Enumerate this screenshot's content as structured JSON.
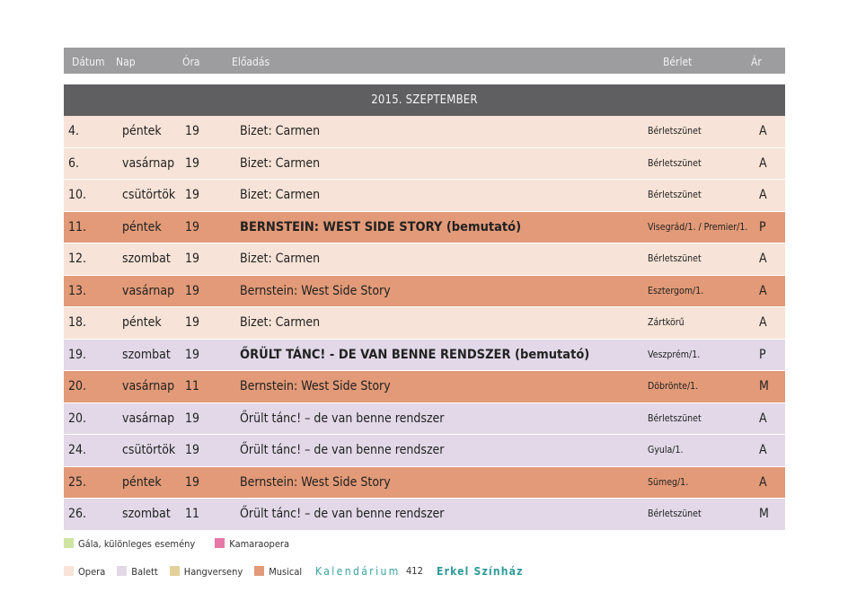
{
  "header": {
    "date": "Dátum",
    "day": "Nap",
    "hour": "Óra",
    "title": "Előadás",
    "season": "Bérlet",
    "price": "Ár"
  },
  "month": "2015. SZEPTEMBER",
  "rows": [
    {
      "date": "4.",
      "day": "péntek",
      "hour": "19",
      "title": "Bizet: Carmen",
      "season": "Bérletszünet",
      "price": "A",
      "type": "opera",
      "bold": false
    },
    {
      "date": "6.",
      "day": "vasárnap",
      "hour": "19",
      "title": "Bizet: Carmen",
      "season": "Bérletszünet",
      "price": "A",
      "type": "opera",
      "bold": false
    },
    {
      "date": "10.",
      "day": "csütörtök",
      "hour": "19",
      "title": "Bizet: Carmen",
      "season": "Bérletszünet",
      "price": "A",
      "type": "opera",
      "bold": false
    },
    {
      "date": "11.",
      "day": "péntek",
      "hour": "19",
      "title": "BERNSTEIN: WEST SIDE STORY (bemutató)",
      "season": "Visegrád/1. / Premier/1.",
      "price": "P",
      "type": "musical",
      "bold": true
    },
    {
      "date": "12.",
      "day": "szombat",
      "hour": "19",
      "title": "Bizet: Carmen",
      "season": "Bérletszünet",
      "price": "A",
      "type": "opera",
      "bold": false
    },
    {
      "date": "13.",
      "day": "vasárnap",
      "hour": "19",
      "title": "Bernstein: West Side Story",
      "season": "Esztergom/1.",
      "price": "A",
      "type": "musical",
      "bold": false
    },
    {
      "date": "18.",
      "day": "péntek",
      "hour": "19",
      "title": "Bizet: Carmen",
      "season": "Zártkörű",
      "price": "A",
      "type": "opera",
      "bold": false
    },
    {
      "date": "19.",
      "day": "szombat",
      "hour": "19",
      "title": "ŐRÜLT TÁNC! - DE VAN BENNE RENDSZER (bemutató)",
      "season": "Veszprém/1.",
      "price": "P",
      "type": "balett",
      "bold": true
    },
    {
      "date": "20.",
      "day": "vasárnap",
      "hour": "11",
      "title": "Bernstein: West Side Story",
      "season": "Döbrönte/1.",
      "price": "M",
      "type": "musical",
      "bold": false
    },
    {
      "date": "20.",
      "day": "vasárnap",
      "hour": "19",
      "title": "Őrült tánc! – de van benne rendszer",
      "season": "Bérletszünet",
      "price": "A",
      "type": "balett",
      "bold": false
    },
    {
      "date": "24.",
      "day": "csütörtök",
      "hour": "19",
      "title": "Őrült tánc! – de van benne rendszer",
      "season": "Gyula/1.",
      "price": "A",
      "type": "balett",
      "bold": false
    },
    {
      "date": "25.",
      "day": "péntek",
      "hour": "19",
      "title": "Bernstein: West Side Story",
      "season": "Sümeg/1.",
      "price": "A",
      "type": "musical",
      "bold": false
    },
    {
      "date": "26.",
      "day": "szombat",
      "hour": "11",
      "title": "Őrült tánc! – de van benne rendszer",
      "season": "Bérletszünet",
      "price": "M",
      "type": "balett",
      "bold": false
    }
  ],
  "legend_top": [
    {
      "label": "Gála, különleges esemény",
      "color": "#cfe3a3"
    },
    {
      "label": "Kamaraopera",
      "color": "#e678a8"
    }
  ],
  "legend_bottom": [
    {
      "label": "Opera",
      "color": "#f7e3d7"
    },
    {
      "label": "Balett",
      "color": "#e2d8e8"
    },
    {
      "label": "Hangverseny",
      "color": "#e3d19a"
    },
    {
      "label": "Musical",
      "color": "#e29a78"
    }
  ],
  "footer": {
    "calendar": "Kalendárium",
    "page": "412",
    "theatre": "Erkel Színház"
  }
}
